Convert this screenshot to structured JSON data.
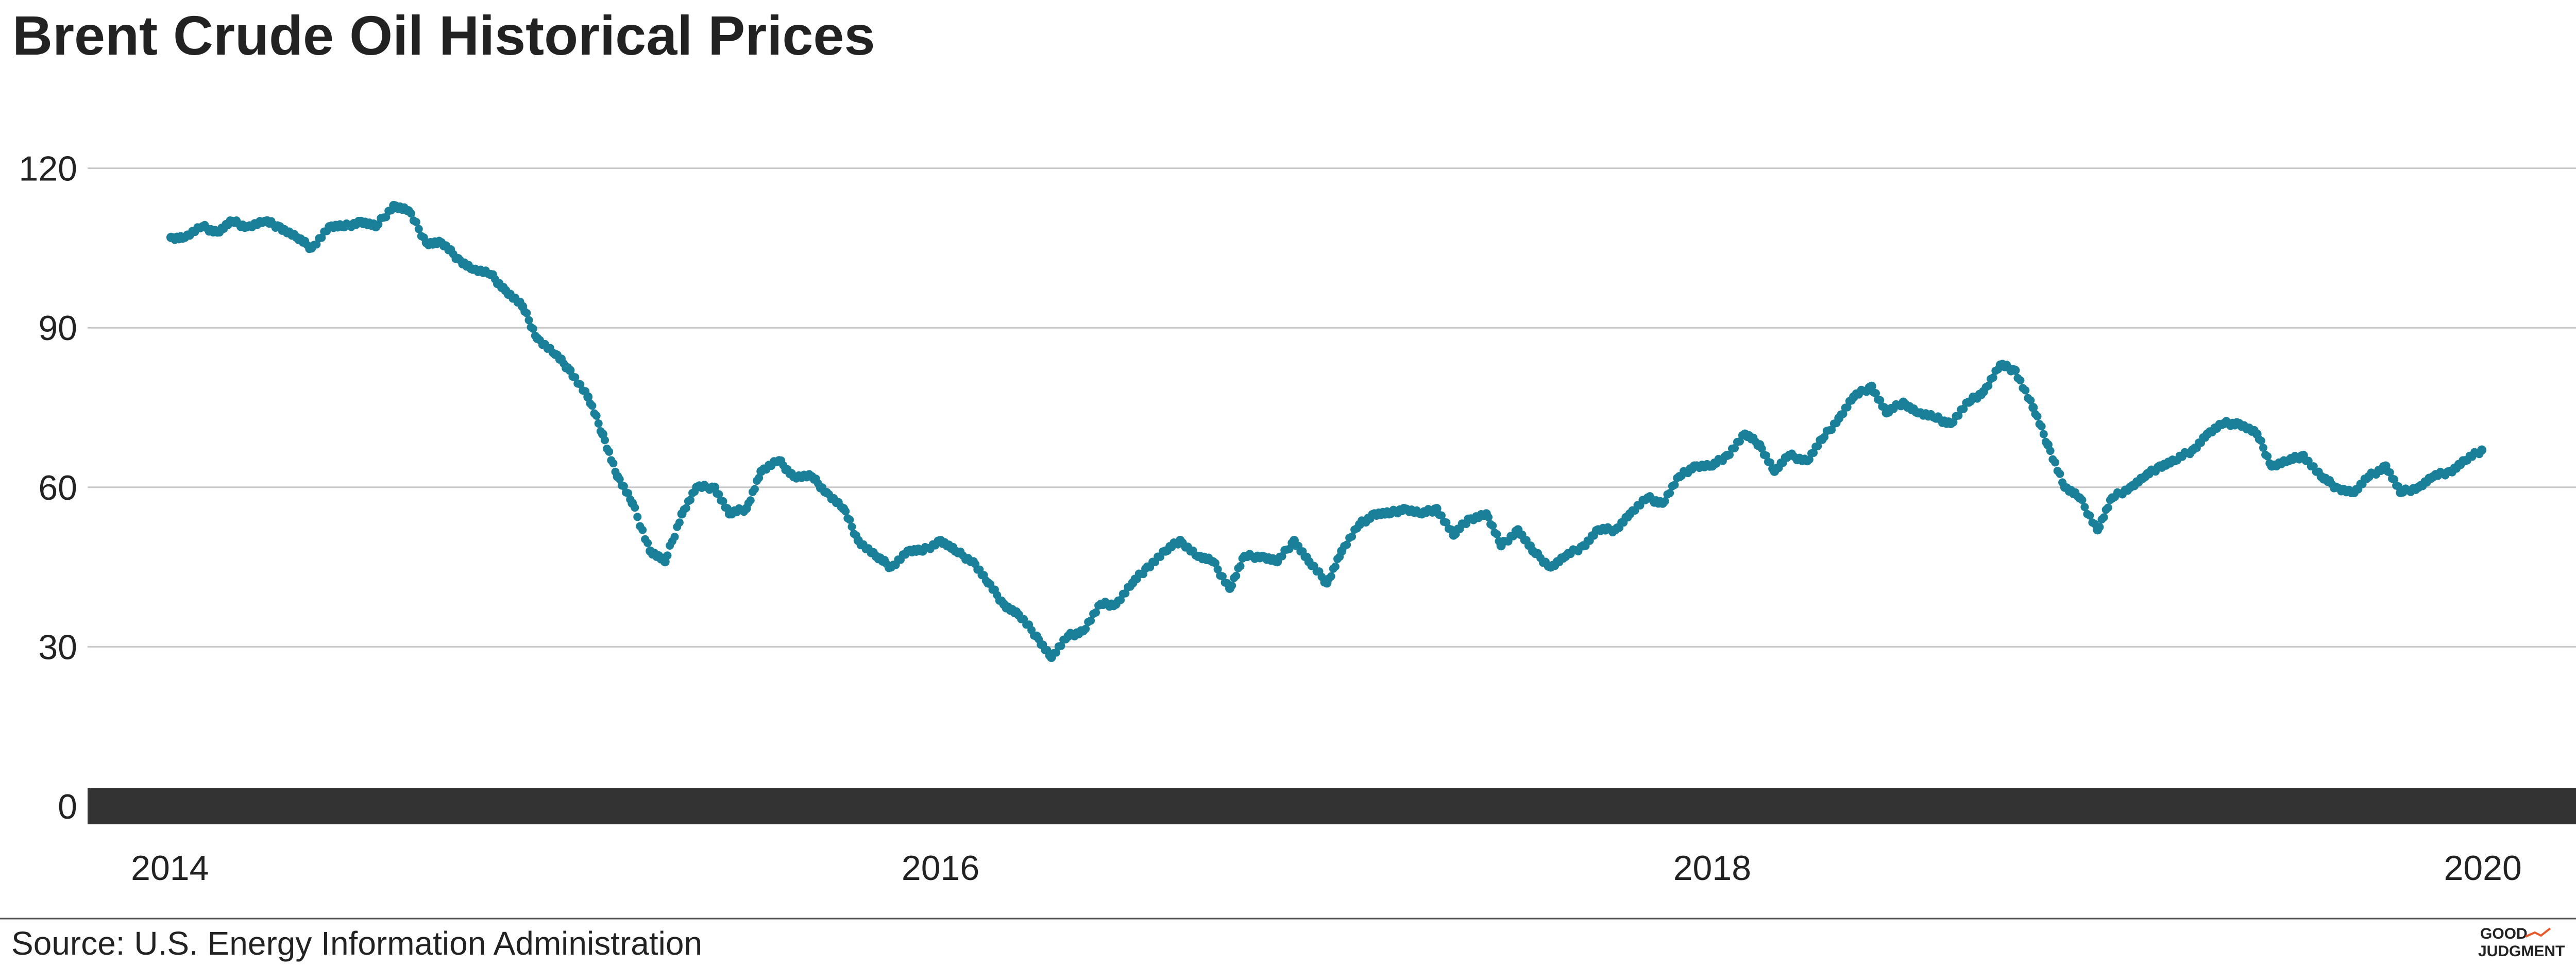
{
  "header": {
    "title": "Brent Crude Oil Historical Prices"
  },
  "footer": {
    "source": "Source: U.S. Energy Information Administration",
    "logo_text": [
      "GOOD",
      "JUDGMENT",
      "®"
    ]
  },
  "colors": {
    "points": "#1a7f99",
    "baseline": "#333333",
    "grid": "#c8c8c8",
    "text": "#222222"
  },
  "chart_data": {
    "type": "scatter",
    "title": "Brent Crude Oil Historical Prices",
    "xlabel": "",
    "ylabel": "",
    "x_ticks": [
      "2014",
      "2016",
      "2018",
      "2020"
    ],
    "y_ticks": [
      0,
      30,
      60,
      90,
      120
    ],
    "ylim": [
      0,
      130
    ],
    "xlim": [
      "2013-10-15",
      "2020-06-30"
    ],
    "grid": true,
    "legend": "none",
    "series": [
      {
        "points": [
          [
            "2014-01-02",
            107
          ],
          [
            "2014-01-15",
            107
          ],
          [
            "2014-02-01",
            109
          ],
          [
            "2014-02-15",
            108
          ],
          [
            "2014-03-01",
            110
          ],
          [
            "2014-03-15",
            109
          ],
          [
            "2014-04-01",
            110
          ],
          [
            "2014-04-15",
            109
          ],
          [
            "2014-05-01",
            107
          ],
          [
            "2014-05-15",
            105
          ],
          [
            "2014-06-01",
            109
          ],
          [
            "2014-06-15",
            109
          ],
          [
            "2014-07-01",
            110
          ],
          [
            "2014-07-15",
            109
          ],
          [
            "2014-08-01",
            113
          ],
          [
            "2014-08-15",
            112
          ],
          [
            "2014-09-01",
            106
          ],
          [
            "2014-09-15",
            106
          ],
          [
            "2014-10-01",
            103
          ],
          [
            "2014-10-15",
            101
          ],
          [
            "2014-11-01",
            100
          ],
          [
            "2014-11-15",
            97
          ],
          [
            "2014-12-01",
            94
          ],
          [
            "2014-12-15",
            88
          ],
          [
            "2015-01-01",
            85
          ],
          [
            "2015-01-15",
            82
          ],
          [
            "2015-02-01",
            77
          ],
          [
            "2015-02-15",
            70
          ],
          [
            "2015-03-01",
            62
          ],
          [
            "2015-03-15",
            57
          ],
          [
            "2015-04-01",
            48
          ],
          [
            "2015-04-15",
            46
          ],
          [
            "2015-05-01",
            55
          ],
          [
            "2015-05-15",
            60
          ],
          [
            "2015-06-01",
            60
          ],
          [
            "2015-06-15",
            55
          ],
          [
            "2015-07-01",
            56
          ],
          [
            "2015-07-15",
            63
          ],
          [
            "2015-08-01",
            65
          ],
          [
            "2015-08-15",
            62
          ],
          [
            "2015-09-01",
            62
          ],
          [
            "2015-09-15",
            59
          ],
          [
            "2015-10-01",
            56
          ],
          [
            "2015-10-15",
            50
          ],
          [
            "2015-11-01",
            47
          ],
          [
            "2015-11-15",
            45
          ],
          [
            "2015-12-01",
            48
          ],
          [
            "2015-12-15",
            48
          ],
          [
            "2016-01-01",
            50
          ],
          [
            "2016-01-15",
            48
          ],
          [
            "2016-02-01",
            46
          ],
          [
            "2016-02-15",
            42
          ],
          [
            "2016-03-01",
            38
          ],
          [
            "2016-03-15",
            36
          ],
          [
            "2016-04-01",
            32
          ],
          [
            "2016-04-15",
            28
          ],
          [
            "2016-05-01",
            32
          ],
          [
            "2016-05-15",
            33
          ],
          [
            "2016-06-01",
            38
          ],
          [
            "2016-06-15",
            38
          ],
          [
            "2016-07-01",
            42
          ],
          [
            "2016-07-15",
            45
          ],
          [
            "2016-08-01",
            48
          ],
          [
            "2016-08-15",
            50
          ],
          [
            "2016-09-01",
            47
          ],
          [
            "2016-09-15",
            46
          ],
          [
            "2016-10-01",
            41
          ],
          [
            "2016-10-15",
            47
          ],
          [
            "2016-11-01",
            47
          ],
          [
            "2016-11-15",
            46
          ],
          [
            "2016-12-01",
            50
          ],
          [
            "2016-12-15",
            46
          ],
          [
            "2017-01-01",
            42
          ],
          [
            "2017-01-15",
            48
          ],
          [
            "2017-02-01",
            53
          ],
          [
            "2017-02-15",
            55
          ],
          [
            "2017-03-01",
            55
          ],
          [
            "2017-03-15",
            56
          ],
          [
            "2017-04-01",
            55
          ],
          [
            "2017-04-15",
            56
          ],
          [
            "2017-05-01",
            51
          ],
          [
            "2017-05-15",
            54
          ],
          [
            "2017-06-01",
            55
          ],
          [
            "2017-06-15",
            49
          ],
          [
            "2017-07-01",
            52
          ],
          [
            "2017-07-15",
            48
          ],
          [
            "2017-08-01",
            45
          ],
          [
            "2017-08-15",
            47
          ],
          [
            "2017-09-01",
            49
          ],
          [
            "2017-09-15",
            52
          ],
          [
            "2017-10-01",
            52
          ],
          [
            "2017-10-15",
            55
          ],
          [
            "2017-11-01",
            58
          ],
          [
            "2017-11-15",
            57
          ],
          [
            "2017-12-01",
            62
          ],
          [
            "2017-12-15",
            64
          ],
          [
            "2018-01-01",
            64
          ],
          [
            "2018-01-15",
            66
          ],
          [
            "2018-02-01",
            70
          ],
          [
            "2018-02-15",
            68
          ],
          [
            "2018-03-01",
            63
          ],
          [
            "2018-03-15",
            66
          ],
          [
            "2018-04-01",
            65
          ],
          [
            "2018-04-15",
            69
          ],
          [
            "2018-05-01",
            73
          ],
          [
            "2018-05-15",
            77
          ],
          [
            "2018-06-01",
            79
          ],
          [
            "2018-06-15",
            74
          ],
          [
            "2018-07-01",
            76
          ],
          [
            "2018-07-15",
            74
          ],
          [
            "2018-08-01",
            73
          ],
          [
            "2018-08-15",
            72
          ],
          [
            "2018-09-01",
            76
          ],
          [
            "2018-09-15",
            78
          ],
          [
            "2018-10-01",
            83
          ],
          [
            "2018-10-15",
            82
          ],
          [
            "2018-11-01",
            75
          ],
          [
            "2018-11-15",
            68
          ],
          [
            "2018-12-01",
            60
          ],
          [
            "2018-12-15",
            58
          ],
          [
            "2019-01-01",
            52
          ],
          [
            "2019-01-15",
            58
          ],
          [
            "2019-02-01",
            60
          ],
          [
            "2019-02-15",
            62
          ],
          [
            "2019-03-01",
            64
          ],
          [
            "2019-03-15",
            65
          ],
          [
            "2019-04-01",
            67
          ],
          [
            "2019-04-15",
            70
          ],
          [
            "2019-05-01",
            72
          ],
          [
            "2019-05-15",
            72
          ],
          [
            "2019-06-01",
            70
          ],
          [
            "2019-06-15",
            64
          ],
          [
            "2019-07-01",
            65
          ],
          [
            "2019-07-15",
            66
          ],
          [
            "2019-08-01",
            62
          ],
          [
            "2019-08-15",
            60
          ],
          [
            "2019-09-01",
            59
          ],
          [
            "2019-09-15",
            62
          ],
          [
            "2019-10-01",
            64
          ],
          [
            "2019-10-15",
            59
          ],
          [
            "2019-11-01",
            60
          ],
          [
            "2019-11-15",
            62
          ],
          [
            "2019-12-01",
            63
          ],
          [
            "2019-12-15",
            65
          ],
          [
            "2019-12-31",
            67
          ]
        ]
      }
    ]
  }
}
